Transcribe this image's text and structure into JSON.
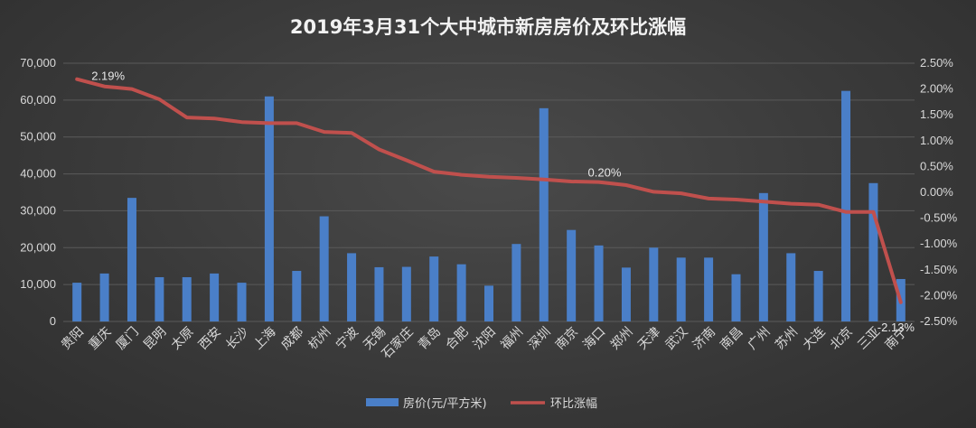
{
  "chart_data": {
    "type": "bar+line",
    "title": "2019年3月31个大中城市新房房价及环比涨幅",
    "categories": [
      "贵阳",
      "重庆",
      "厦门",
      "昆明",
      "太原",
      "西安",
      "长沙",
      "上海",
      "成都",
      "杭州",
      "宁波",
      "无锡",
      "石家庄",
      "青岛",
      "合肥",
      "沈阳",
      "福州",
      "深圳",
      "南京",
      "海口",
      "郑州",
      "天津",
      "武汉",
      "济南",
      "南昌",
      "广州",
      "苏州",
      "大连",
      "北京",
      "三亚",
      "南宁"
    ],
    "series": [
      {
        "name": "房价(元/平方米)",
        "type": "bar",
        "axis": "left",
        "color": "#4a7fc8",
        "values": [
          10500,
          13000,
          33500,
          12000,
          12000,
          13000,
          10500,
          61000,
          13700,
          28500,
          18500,
          14700,
          14800,
          17600,
          15500,
          9700,
          21000,
          57800,
          24800,
          20600,
          14600,
          20000,
          17300,
          17300,
          12800,
          34800,
          18500,
          13700,
          62500,
          37500,
          11500
        ]
      },
      {
        "name": "环比涨幅",
        "type": "line",
        "axis": "right",
        "color": "#c0504d",
        "values": [
          2.19,
          2.05,
          2.0,
          1.8,
          1.45,
          1.43,
          1.36,
          1.34,
          1.34,
          1.17,
          1.15,
          0.83,
          0.62,
          0.4,
          0.34,
          0.3,
          0.28,
          0.25,
          0.21,
          0.2,
          0.14,
          0.01,
          -0.02,
          -0.12,
          -0.14,
          -0.18,
          -0.22,
          -0.24,
          -0.38,
          -0.38,
          -2.13
        ]
      }
    ],
    "yleft": {
      "min": 0,
      "max": 70000,
      "step": 10000,
      "ticks": [
        "0",
        "10,000",
        "20,000",
        "30,000",
        "40,000",
        "50,000",
        "60,000",
        "70,000"
      ]
    },
    "yright": {
      "min": -2.5,
      "max": 2.5,
      "step": 0.5,
      "ticks": [
        "-2.50%",
        "-2.00%",
        "-1.50%",
        "-1.00%",
        "-0.50%",
        "0.00%",
        "0.50%",
        "1.00%",
        "1.50%",
        "2.00%",
        "2.50%"
      ]
    },
    "data_labels": [
      {
        "series": 1,
        "index": 0,
        "text": "2.19%"
      },
      {
        "series": 1,
        "index": 19,
        "text": "0.20%"
      },
      {
        "series": 1,
        "index": 30,
        "text": "-2.13%"
      }
    ],
    "grid": true,
    "legend": "bottom-center"
  }
}
